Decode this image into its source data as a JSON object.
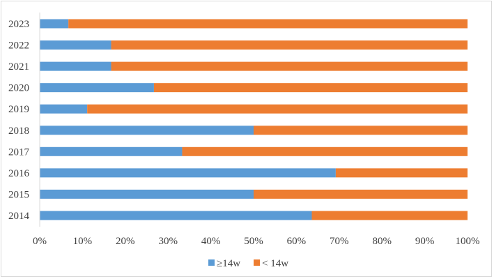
{
  "chart_data": {
    "type": "bar",
    "orientation": "horizontal",
    "stacked": "percent",
    "categories": [
      "2023",
      "2022",
      "2021",
      "2020",
      "2019",
      "2018",
      "2017",
      "2016",
      "2015",
      "2014"
    ],
    "series": [
      {
        "name": "≥14w",
        "color": "#5b9bd5",
        "values": [
          6.7,
          16.7,
          16.7,
          26.7,
          11.1,
          50.0,
          33.3,
          69.2,
          50.0,
          63.6
        ]
      },
      {
        "name": "< 14w",
        "color": "#ed7d31",
        "values": [
          93.3,
          83.3,
          83.3,
          73.3,
          88.9,
          50.0,
          66.7,
          30.8,
          50.0,
          36.4
        ]
      }
    ],
    "xlim": [
      0,
      100
    ],
    "x_ticks": [
      "0%",
      "10%",
      "20%",
      "30%",
      "40%",
      "50%",
      "60%",
      "70%",
      "80%",
      "90%",
      "100%"
    ],
    "grid": false,
    "legend_position": "bottom"
  }
}
